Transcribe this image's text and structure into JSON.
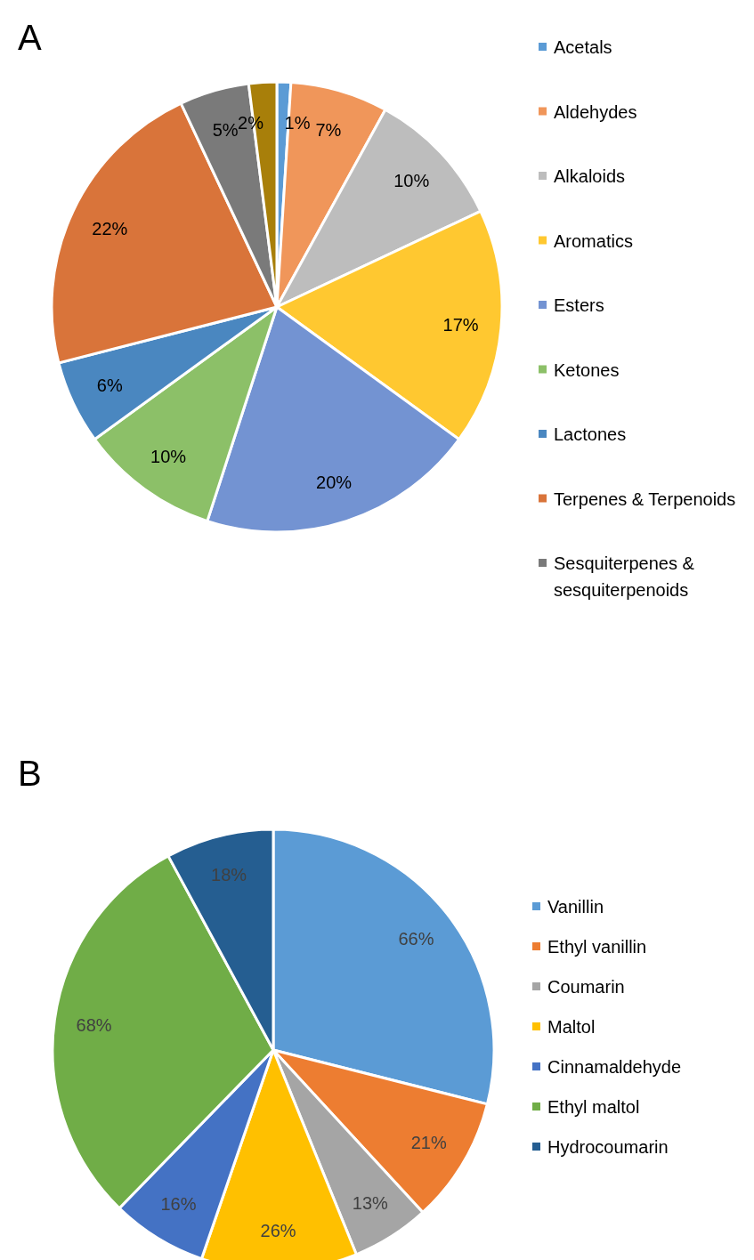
{
  "chart_data": [
    {
      "type": "pie",
      "title": "A",
      "categories": [
        "Acetals",
        "Aldehydes",
        "Alkaloids",
        "Aromatics",
        "Esters",
        "Ketones",
        "Lactones",
        "Terpenes & Terpenoids",
        "Sesquiterpenes & sesquiterpenoids",
        null
      ],
      "values": [
        1,
        7,
        10,
        17,
        20,
        10,
        6,
        22,
        5,
        2
      ],
      "value_labels": [
        "1%",
        "7%",
        "10%",
        "17%",
        "20%",
        "10%",
        "6%",
        "22%",
        "5%",
        "2%"
      ],
      "colors": [
        "#5b9bd5",
        "#f0965a",
        "#bdbdbd",
        "#ffc830",
        "#7393d2",
        "#8cc068",
        "#4a87c0",
        "#d9743a",
        "#7a7a7a",
        "#a87f0a"
      ],
      "legend": "right"
    },
    {
      "type": "pie",
      "title": "B",
      "categories": [
        "Vanillin",
        "Ethyl vanillin",
        "Coumarin",
        "Maltol",
        "Cinnamaldehyde",
        "Ethyl maltol",
        "Hydrocoumarin"
      ],
      "values": [
        66,
        21,
        13,
        26,
        16,
        68,
        18
      ],
      "value_labels": [
        "66%",
        "21%",
        "13%",
        "26%",
        "16%",
        "68%",
        "18%"
      ],
      "colors": [
        "#5b9bd5",
        "#ed7d31",
        "#a5a5a5",
        "#ffc000",
        "#4472c4",
        "#70ad47",
        "#255e91"
      ],
      "legend": "right"
    }
  ]
}
